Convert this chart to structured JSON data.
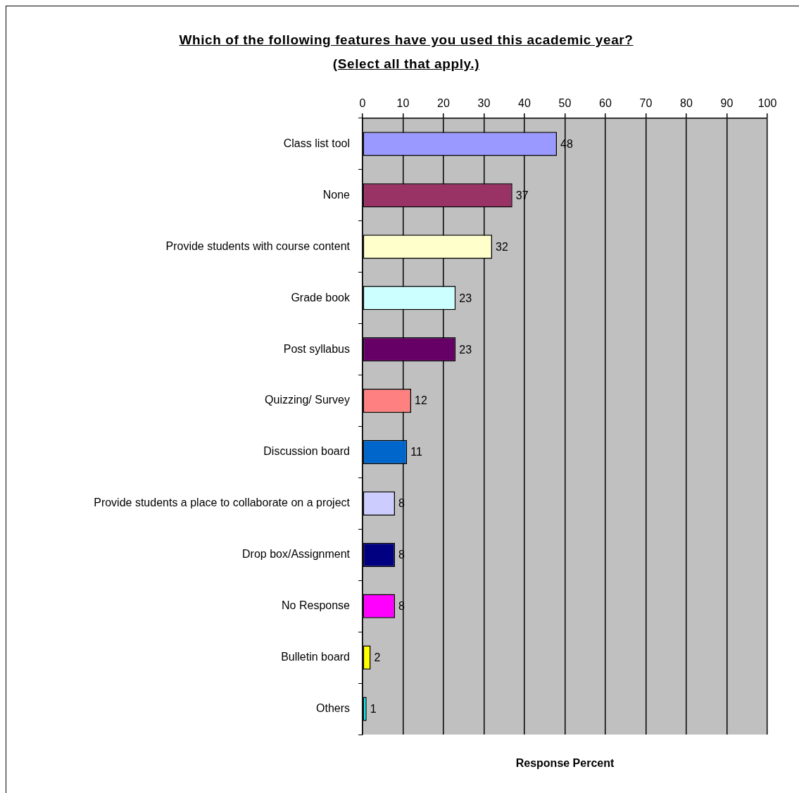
{
  "chart_data": {
    "type": "bar",
    "orientation": "horizontal",
    "title": "Which of the following features have you used this academic year? (Select all that apply.)",
    "xlabel": "Response Percent",
    "categories": [
      "Class list tool",
      "None",
      "Provide students with course content",
      "Grade book",
      "Post syllabus",
      "Quizzing/ Survey",
      "Discussion board",
      "Provide students a place to collaborate on a project",
      "Drop box/Assignment",
      "No Response",
      "Bulletin board",
      "Others"
    ],
    "values": [
      48,
      37,
      32,
      23,
      23,
      12,
      11,
      8,
      8,
      8,
      2,
      1
    ],
    "colors": [
      "#9999ff",
      "#993366",
      "#ffffcc",
      "#ccffff",
      "#660066",
      "#ff8080",
      "#0066cc",
      "#ccccff",
      "#000080",
      "#ff00ff",
      "#ffff00",
      "#00ffff"
    ],
    "xlim": [
      0,
      100
    ],
    "xticks": [
      0,
      10,
      20,
      30,
      40,
      50,
      60,
      70,
      80,
      90,
      100
    ],
    "grid": "x",
    "legend": false,
    "data_labels": true
  }
}
